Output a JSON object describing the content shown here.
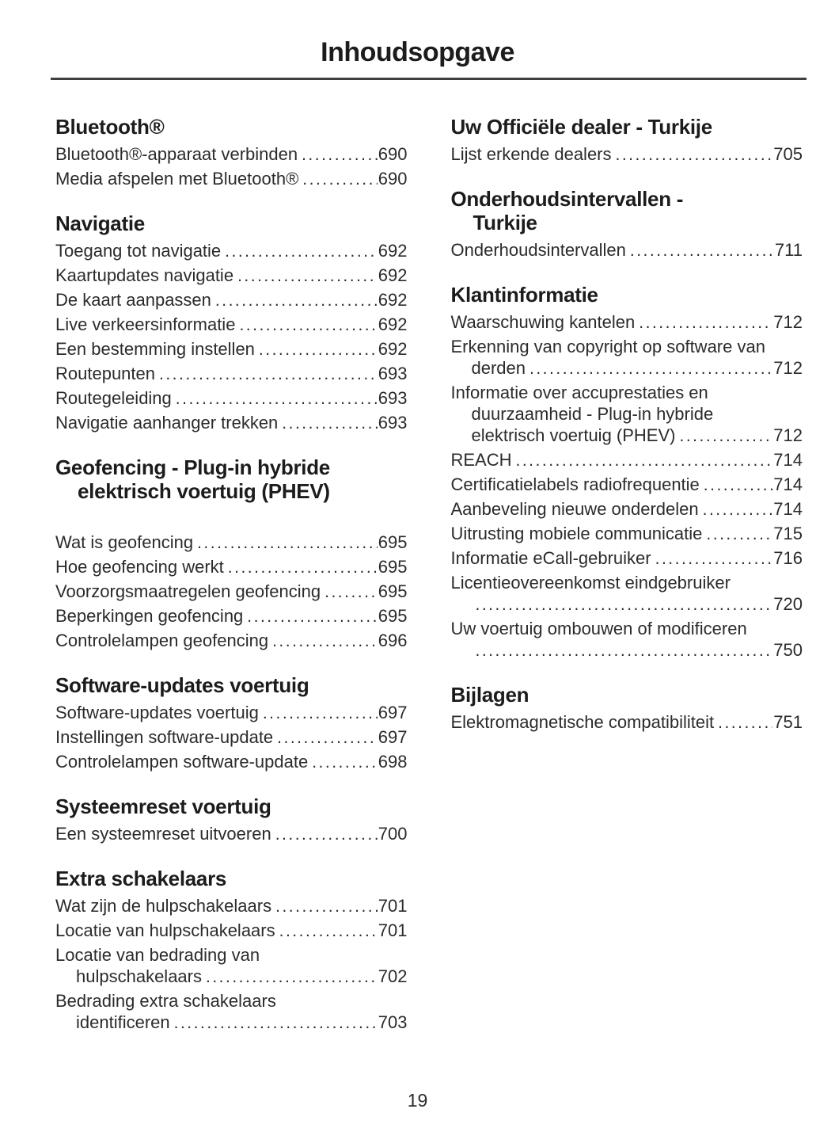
{
  "page": {
    "title": "Inhoudsopgave",
    "number": "19"
  },
  "colors": {
    "text": "#2b2b2b",
    "heading": "#1c1c1c",
    "rule": "#3f3f3f",
    "background": "#ffffff"
  },
  "columns": [
    {
      "sections": [
        {
          "heading_lines": [
            "Bluetooth®"
          ],
          "extra_gap": false,
          "entries": [
            {
              "lines": [
                "Bluetooth®-apparaat verbinden"
              ],
              "page": "690"
            },
            {
              "lines": [
                "Media afspelen met Bluetooth®"
              ],
              "page": "690"
            }
          ]
        },
        {
          "heading_lines": [
            "Navigatie"
          ],
          "extra_gap": false,
          "entries": [
            {
              "lines": [
                "Toegang tot navigatie"
              ],
              "page": "692"
            },
            {
              "lines": [
                "Kaartupdates navigatie"
              ],
              "page": "692"
            },
            {
              "lines": [
                "De kaart aanpassen"
              ],
              "page": "692"
            },
            {
              "lines": [
                "Live verkeersinformatie"
              ],
              "page": "692"
            },
            {
              "lines": [
                "Een bestemming instellen"
              ],
              "page": "692"
            },
            {
              "lines": [
                "Routepunten"
              ],
              "page": "693"
            },
            {
              "lines": [
                "Routegeleiding"
              ],
              "page": "693"
            },
            {
              "lines": [
                "Navigatie aanhanger trekken"
              ],
              "page": "693"
            }
          ]
        },
        {
          "heading_lines": [
            "Geofencing - Plug-in hybride",
            "elektrisch voertuig (PHEV)"
          ],
          "extra_gap": true,
          "entries": [
            {
              "lines": [
                "Wat is geofencing"
              ],
              "page": "695"
            },
            {
              "lines": [
                "Hoe geofencing werkt"
              ],
              "page": "695"
            },
            {
              "lines": [
                "Voorzorgsmaatregelen geofencing"
              ],
              "page": "695"
            },
            {
              "lines": [
                "Beperkingen geofencing"
              ],
              "page": "695"
            },
            {
              "lines": [
                "Controlelampen geofencing"
              ],
              "page": "696"
            }
          ]
        },
        {
          "heading_lines": [
            "Software-updates voertuig"
          ],
          "extra_gap": false,
          "entries": [
            {
              "lines": [
                "Software-updates voertuig"
              ],
              "page": "697"
            },
            {
              "lines": [
                "Instellingen software-update"
              ],
              "page": "697"
            },
            {
              "lines": [
                "Controlelampen software-update"
              ],
              "page": "698"
            }
          ]
        },
        {
          "heading_lines": [
            "Systeemreset voertuig"
          ],
          "extra_gap": false,
          "entries": [
            {
              "lines": [
                "Een systeemreset uitvoeren"
              ],
              "page": "700"
            }
          ]
        },
        {
          "heading_lines": [
            "Extra schakelaars"
          ],
          "extra_gap": false,
          "entries": [
            {
              "lines": [
                "Wat zijn de hulpschakelaars"
              ],
              "page": "701"
            },
            {
              "lines": [
                "Locatie van hulpschakelaars"
              ],
              "page": "701"
            },
            {
              "lines": [
                "Locatie van bedrading van",
                "hulpschakelaars"
              ],
              "page": "702"
            },
            {
              "lines": [
                "Bedrading extra schakelaars",
                "identificeren"
              ],
              "page": "703"
            }
          ]
        }
      ]
    },
    {
      "sections": [
        {
          "heading_lines": [
            "Uw Officiële dealer - Turkije"
          ],
          "extra_gap": false,
          "entries": [
            {
              "lines": [
                "Lijst erkende dealers"
              ],
              "page": "705"
            }
          ]
        },
        {
          "heading_lines": [
            "Onderhoudsintervallen -",
            "Turkije"
          ],
          "extra_gap": false,
          "entries": [
            {
              "lines": [
                "Onderhoudsintervallen"
              ],
              "page": "711"
            }
          ]
        },
        {
          "heading_lines": [
            "Klantinformatie"
          ],
          "extra_gap": false,
          "entries": [
            {
              "lines": [
                "Waarschuwing kantelen"
              ],
              "page": "712"
            },
            {
              "lines": [
                "Erkenning van copyright op software van",
                "derden"
              ],
              "page": "712"
            },
            {
              "lines": [
                "Informatie over accuprestaties en",
                "duurzaamheid - Plug-in hybride",
                "elektrisch voertuig (PHEV)"
              ],
              "page": "712"
            },
            {
              "lines": [
                "REACH"
              ],
              "page": "714"
            },
            {
              "lines": [
                "Certificatielabels radiofrequentie"
              ],
              "page": "714"
            },
            {
              "lines": [
                "Aanbeveling nieuwe onderdelen"
              ],
              "page": "714"
            },
            {
              "lines": [
                "Uitrusting mobiele communicatie"
              ],
              "page": "715"
            },
            {
              "lines": [
                "Informatie eCall-gebruiker"
              ],
              "page": "716"
            },
            {
              "lines": [
                "Licentieovereenkomst eindgebruiker",
                ""
              ],
              "page": "720"
            },
            {
              "lines": [
                "Uw voertuig ombouwen of modificeren",
                ""
              ],
              "page": "750"
            }
          ]
        },
        {
          "heading_lines": [
            "Bijlagen"
          ],
          "extra_gap": false,
          "entries": [
            {
              "lines": [
                "Elektromagnetische compatibiliteit"
              ],
              "page": "751"
            }
          ]
        }
      ]
    }
  ]
}
